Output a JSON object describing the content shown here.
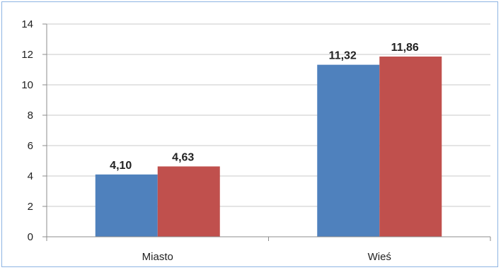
{
  "chart_data": {
    "type": "bar",
    "title": "",
    "xlabel": "",
    "ylabel": "",
    "categories": [
      "Miasto",
      "Wieś"
    ],
    "series": [
      {
        "values": [
          4.1,
          11.32
        ],
        "labels": [
          "4,10",
          "11,32"
        ],
        "color": "#4f81bd"
      },
      {
        "values": [
          4.63,
          11.86
        ],
        "labels": [
          "4,63",
          "11,86"
        ],
        "color": "#c0504d"
      }
    ],
    "ylim": [
      0,
      14
    ],
    "yticks": [
      0,
      2,
      4,
      6,
      8,
      10,
      12,
      14
    ],
    "grid": true,
    "legend": "none"
  }
}
